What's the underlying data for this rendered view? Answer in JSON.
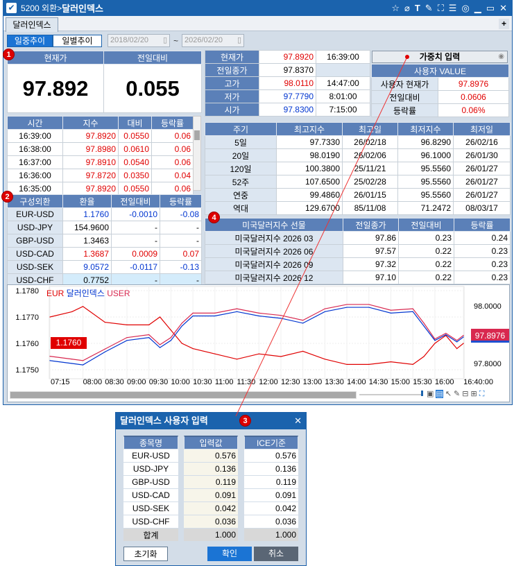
{
  "window": {
    "title_code": "5200 외환>",
    "title_name": "달러인덱스",
    "icons": [
      "star-icon",
      "eraser-icon",
      "text-icon",
      "pen-icon",
      "fullscreen-icon",
      "list-icon",
      "chat-icon",
      "minimize-icon",
      "maximize-icon",
      "close-icon"
    ]
  },
  "tabs": [
    {
      "label": "달러인덱스",
      "active": true
    }
  ],
  "toolbar": {
    "mode_intraday": "일중추이",
    "mode_daily": "일별추이",
    "date_from": "2018/02/20",
    "date_sep": "~",
    "date_to": "2026/02/20"
  },
  "summary": {
    "current_label": "현재가",
    "change_label": "전일대비",
    "current_value": "97.892",
    "change_value": "0.055"
  },
  "tick_table": {
    "headers": [
      "시간",
      "지수",
      "대비",
      "등락률"
    ],
    "rows": [
      [
        "16:39:00",
        "97.8920",
        "0.0550",
        "0.06"
      ],
      [
        "16:38:00",
        "97.8980",
        "0.0610",
        "0.06"
      ],
      [
        "16:37:00",
        "97.8910",
        "0.0540",
        "0.06"
      ],
      [
        "16:36:00",
        "97.8720",
        "0.0350",
        "0.04"
      ],
      [
        "16:35:00",
        "97.8920",
        "0.0550",
        "0.06"
      ]
    ]
  },
  "components": {
    "headers": [
      "구성외환",
      "환율",
      "전일대비",
      "등락률"
    ],
    "rows": [
      {
        "name": "EUR-USD",
        "rate": "1.1760",
        "chg": "-0.0010",
        "pct": "-0.08",
        "dir": "down"
      },
      {
        "name": "USD-JPY",
        "rate": "154.9600",
        "chg": "-",
        "pct": "-",
        "dir": "flat"
      },
      {
        "name": "GBP-USD",
        "rate": "1.3463",
        "chg": "-",
        "pct": "-",
        "dir": "flat"
      },
      {
        "name": "USD-CAD",
        "rate": "1.3687",
        "chg": "0.0009",
        "pct": "0.07",
        "dir": "up"
      },
      {
        "name": "USD-SEK",
        "rate": "9.0572",
        "chg": "-0.0117",
        "pct": "-0.13",
        "dir": "down"
      },
      {
        "name": "USD-CHF",
        "rate": "0.7752",
        "chg": "-",
        "pct": "-",
        "dir": "flat"
      }
    ]
  },
  "quote": {
    "rows": [
      {
        "label": "현재가",
        "value": "97.8920",
        "time": "16:39:00",
        "dir": "up"
      },
      {
        "label": "전일종가",
        "value": "97.8370",
        "time": "",
        "dir": "flat"
      },
      {
        "label": "고가",
        "value": "98.0110",
        "time": "14:47:00",
        "dir": "up"
      },
      {
        "label": "저가",
        "value": "97.7790",
        "time": "8:01:00",
        "dir": "down"
      },
      {
        "label": "시가",
        "value": "97.8300",
        "time": "7:15:00",
        "dir": "down"
      }
    ],
    "weight_button": "가중치 입력",
    "user_header": "사용자 VALUE",
    "user_rows": [
      {
        "label": "사용자 현재가",
        "value": "97.8976"
      },
      {
        "label": "전일대비",
        "value": "0.0606"
      },
      {
        "label": "등락률",
        "value": "0.06%"
      }
    ]
  },
  "periods": {
    "headers": [
      "주기",
      "최고지수",
      "최고일",
      "최저지수",
      "최저일"
    ],
    "rows": [
      [
        "5일",
        "97.7330",
        "26/02/18",
        "96.8290",
        "26/02/16"
      ],
      [
        "20일",
        "98.0190",
        "26/02/06",
        "96.1000",
        "26/01/30"
      ],
      [
        "120일",
        "100.3800",
        "25/11/21",
        "95.5560",
        "26/01/27"
      ],
      [
        "52주",
        "107.6500",
        "25/02/28",
        "95.5560",
        "26/01/27"
      ],
      [
        "연중",
        "99.4860",
        "26/01/15",
        "95.5560",
        "26/01/27"
      ],
      [
        "역대",
        "129.6700",
        "85/11/08",
        "71.2472",
        "08/03/17"
      ]
    ]
  },
  "futures": {
    "headers": [
      "미국달러지수 선물",
      "전일종가",
      "전일대비",
      "등락률"
    ],
    "rows": [
      [
        "미국달러지수 2026 03",
        "97.86",
        "0.23",
        "0.24"
      ],
      [
        "미국달러지수 2026 06",
        "97.57",
        "0.22",
        "0.23"
      ],
      [
        "미국달러지수 2026 09",
        "97.32",
        "0.22",
        "0.23"
      ],
      [
        "미국달러지수 2026 12",
        "97.10",
        "0.22",
        "0.23"
      ]
    ]
  },
  "badges": [
    "1",
    "2",
    "3",
    "4"
  ],
  "chart_data": {
    "type": "line",
    "legend_placement": "top-left",
    "grid": true,
    "x_tick_labels": [
      "07:15",
      "08:00",
      "08:30",
      "09:00",
      "09:30",
      "10:00",
      "10:30",
      "11:00",
      "11:30",
      "12:00",
      "12:30",
      "13:00",
      "13:30",
      "14:00",
      "14:30",
      "15:00",
      "15:30",
      "16:00",
      "16:40:00"
    ],
    "y_left": {
      "ticks": [
        "1.1780",
        "1.1770",
        "1.1760",
        "1.1750"
      ],
      "range": [
        1.1747,
        1.1781
      ],
      "current_label": "1.1760"
    },
    "y_right": {
      "ticks": [
        "98.0000",
        "97.8000"
      ],
      "range": [
        97.77,
        98.06
      ],
      "current_label": "97.8976"
    },
    "x": [
      "07:15",
      "07:45",
      "08:00",
      "08:30",
      "09:00",
      "09:30",
      "09:45",
      "10:00",
      "10:15",
      "10:30",
      "11:00",
      "11:30",
      "12:00",
      "12:30",
      "13:00",
      "13:30",
      "14:00",
      "14:30",
      "15:00",
      "15:30",
      "15:45",
      "16:00",
      "16:15",
      "16:30",
      "16:39"
    ],
    "series": [
      {
        "name": "EUR",
        "axis": "left",
        "color": "#e00000",
        "values": [
          1.177,
          1.1772,
          1.1774,
          1.1768,
          1.1767,
          1.1767,
          1.177,
          1.1765,
          1.176,
          1.1758,
          1.1756,
          1.1754,
          1.1756,
          1.1755,
          1.1757,
          1.1754,
          1.1752,
          1.1752,
          1.1753,
          1.1752,
          1.1755,
          1.176,
          1.1763,
          1.1758,
          1.176
        ]
      },
      {
        "name": "달러인덱스",
        "axis": "right",
        "color": "#0035d0",
        "values": [
          97.81,
          97.8,
          97.795,
          97.84,
          97.88,
          97.89,
          97.855,
          97.88,
          97.93,
          97.965,
          97.965,
          97.98,
          97.965,
          97.957,
          97.94,
          97.98,
          97.995,
          97.995,
          97.975,
          97.98,
          97.93,
          97.88,
          97.9,
          97.875,
          97.892
        ]
      },
      {
        "name": "USER",
        "axis": "right",
        "color": "#d8284f",
        "values": [
          97.825,
          97.815,
          97.81,
          97.85,
          97.89,
          97.9,
          97.865,
          97.89,
          97.94,
          97.975,
          97.975,
          97.99,
          97.975,
          97.967,
          97.95,
          97.99,
          98.005,
          98.005,
          97.985,
          97.99,
          97.94,
          97.885,
          97.905,
          97.88,
          97.8976
        ]
      }
    ]
  },
  "dialog": {
    "title": "달러인덱스 사용자 입력",
    "headers": [
      "종목명",
      "입력값",
      "ICE기준"
    ],
    "rows": [
      [
        "EUR-USD",
        "0.576",
        "0.576"
      ],
      [
        "USD-JPY",
        "0.136",
        "0.136"
      ],
      [
        "GBP-USD",
        "0.119",
        "0.119"
      ],
      [
        "USD-CAD",
        "0.091",
        "0.091"
      ],
      [
        "USD-SEK",
        "0.042",
        "0.042"
      ],
      [
        "USD-CHF",
        "0.036",
        "0.036"
      ]
    ],
    "total": [
      "합계",
      "1.000",
      "1.000"
    ],
    "reset": "초기화",
    "ok": "확인",
    "cancel": "취소"
  }
}
